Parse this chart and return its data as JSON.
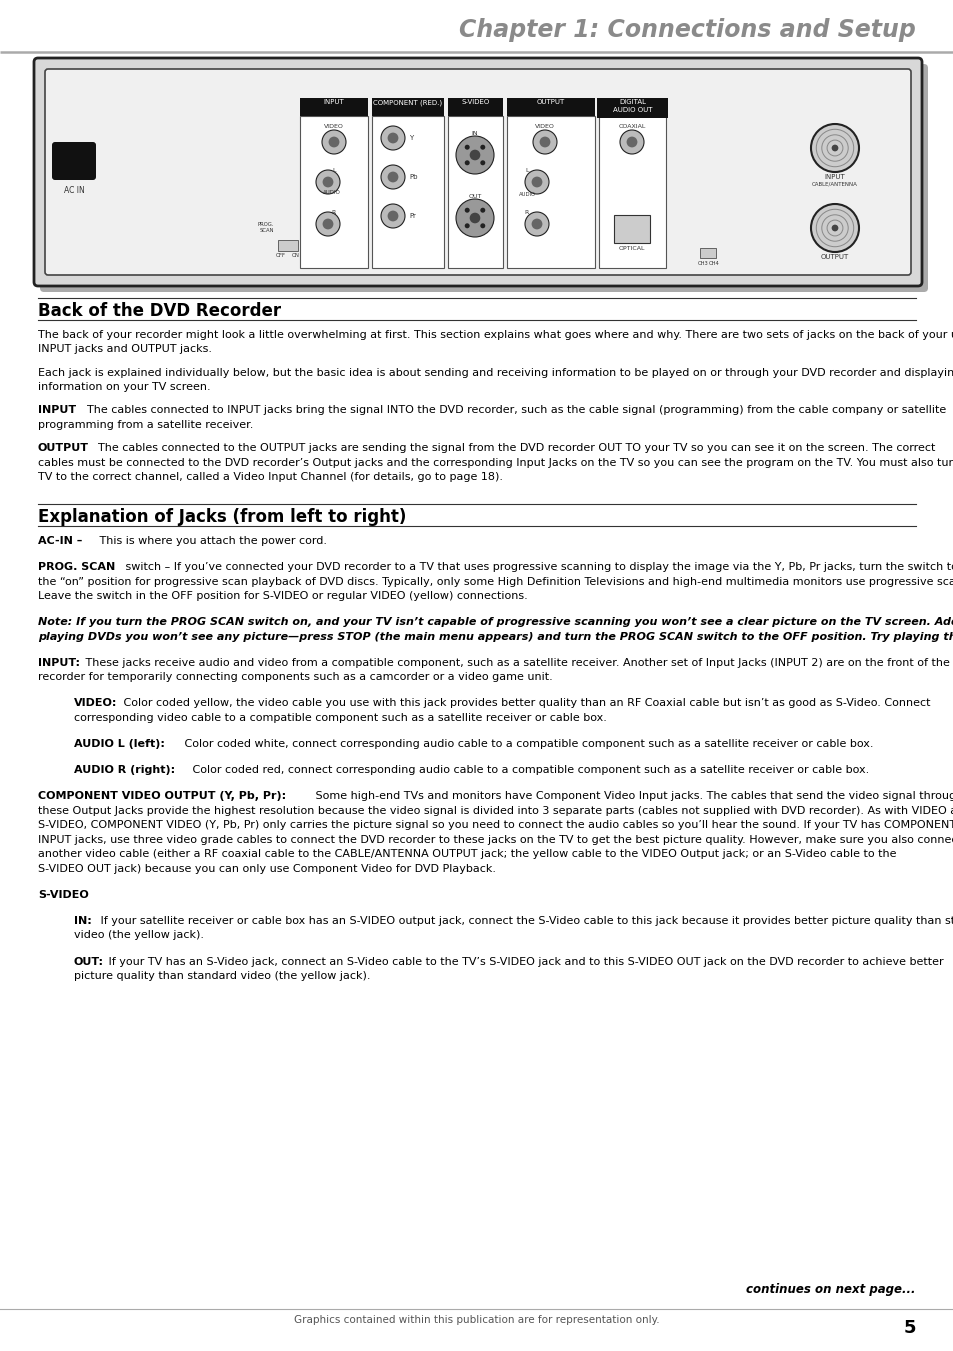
{
  "title": "Chapter 1: Connections and Setup",
  "title_color": "#8a8a8a",
  "background_color": "#ffffff",
  "page_number": "5",
  "footer_text": "Graphics contained within this publication are for representation only.",
  "section1_title": "Back of the DVD Recorder",
  "section2_title": "Explanation of Jacks (from left to right)",
  "continues_text": "continues on next page...",
  "fig_width": 9.54,
  "fig_height": 13.51,
  "dpi": 100
}
